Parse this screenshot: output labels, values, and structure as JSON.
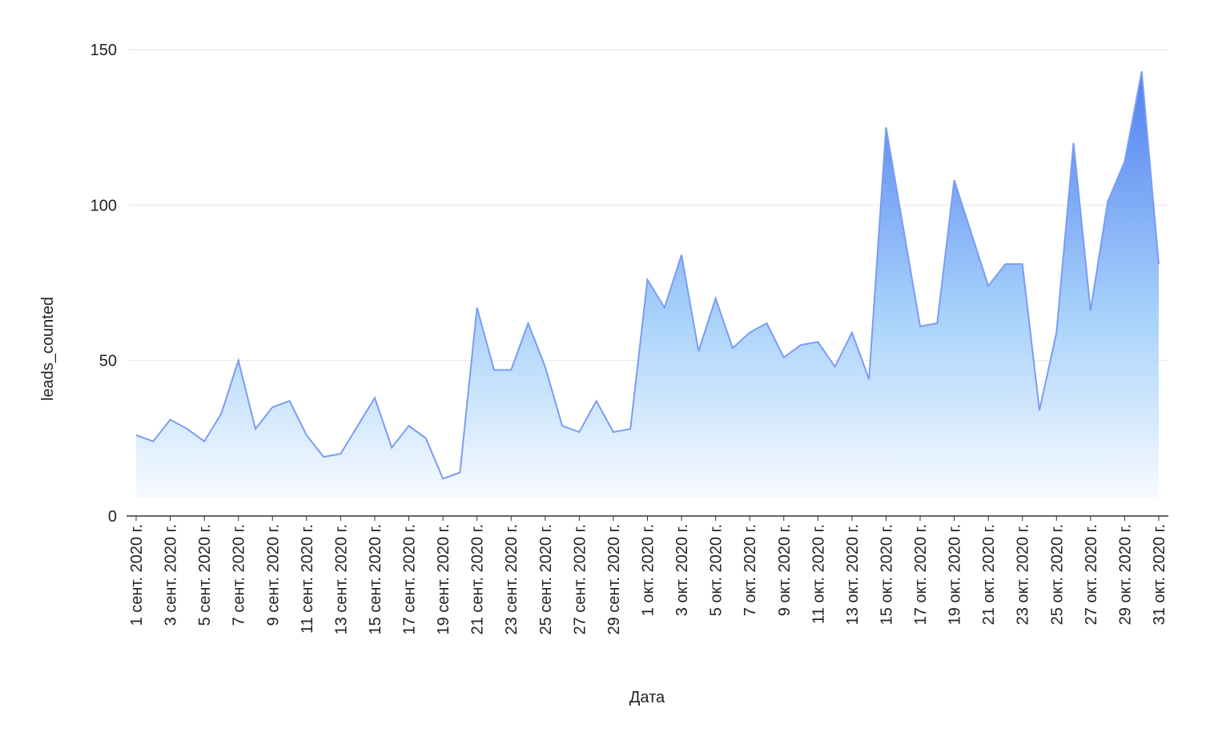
{
  "chart_data": {
    "type": "area",
    "xlabel": "Дата",
    "ylabel": "leads_counted",
    "ylim": [
      0,
      150
    ],
    "yticks": [
      0,
      50,
      100,
      150
    ],
    "grid": true,
    "legend": "none",
    "colors": {
      "line": "#7b9cf3",
      "fill_top": "#4f7ef0",
      "fill_mid": "#a8d2fb",
      "fill_bottom": "#ffffff"
    },
    "x_tick_labels": [
      "1 сент. 2020 г.",
      "3 сент. 2020 г.",
      "5 сент. 2020 г.",
      "7 сент. 2020 г.",
      "9 сент. 2020 г.",
      "11 сент. 2020 г.",
      "13 сент. 2020 г.",
      "15 сент. 2020 г.",
      "17 сент. 2020 г.",
      "19 сент. 2020 г.",
      "21 сент. 2020 г.",
      "23 сент. 2020 г.",
      "25 сент. 2020 г.",
      "27 сент. 2020 г.",
      "29 сент. 2020 г.",
      "1 окт. 2020 г.",
      "3 окт. 2020 г.",
      "5 окт. 2020 г.",
      "7 окт. 2020 г.",
      "9 окт. 2020 г.",
      "11 окт. 2020 г.",
      "13 окт. 2020 г.",
      "15 окт. 2020 г.",
      "17 окт. 2020 г.",
      "19 окт. 2020 г.",
      "21 окт. 2020 г.",
      "23 окт. 2020 г.",
      "25 окт. 2020 г.",
      "27 окт. 2020 г.",
      "29 окт. 2020 г.",
      "31 окт. 2020 г."
    ],
    "x": [
      "2020-09-01",
      "2020-09-02",
      "2020-09-03",
      "2020-09-04",
      "2020-09-05",
      "2020-09-06",
      "2020-09-07",
      "2020-09-08",
      "2020-09-09",
      "2020-09-10",
      "2020-09-11",
      "2020-09-12",
      "2020-09-13",
      "2020-09-14",
      "2020-09-15",
      "2020-09-16",
      "2020-09-17",
      "2020-09-18",
      "2020-09-19",
      "2020-09-20",
      "2020-09-21",
      "2020-09-22",
      "2020-09-23",
      "2020-09-24",
      "2020-09-25",
      "2020-09-26",
      "2020-09-27",
      "2020-09-28",
      "2020-09-29",
      "2020-09-30",
      "2020-10-01",
      "2020-10-02",
      "2020-10-03",
      "2020-10-04",
      "2020-10-05",
      "2020-10-06",
      "2020-10-07",
      "2020-10-08",
      "2020-10-09",
      "2020-10-10",
      "2020-10-11",
      "2020-10-12",
      "2020-10-13",
      "2020-10-14",
      "2020-10-15",
      "2020-10-16",
      "2020-10-17",
      "2020-10-18",
      "2020-10-19",
      "2020-10-20",
      "2020-10-21",
      "2020-10-22",
      "2020-10-23",
      "2020-10-24",
      "2020-10-25",
      "2020-10-26",
      "2020-10-27",
      "2020-10-28",
      "2020-10-29",
      "2020-10-30",
      "2020-10-31"
    ],
    "series": [
      {
        "values": [
          26,
          24,
          31,
          28,
          24,
          33,
          50,
          28,
          35,
          37,
          26,
          19,
          20,
          29,
          38,
          22,
          29,
          25,
          12,
          14,
          67,
          47,
          47,
          62,
          48,
          29,
          27,
          37,
          27,
          28,
          76,
          67,
          84,
          53,
          70,
          54,
          59,
          62,
          51,
          55,
          56,
          48,
          59,
          44,
          125,
          93,
          61,
          62,
          108,
          91,
          74,
          81,
          81,
          34,
          59,
          120,
          66,
          101,
          114,
          143,
          81
        ]
      }
    ]
  }
}
